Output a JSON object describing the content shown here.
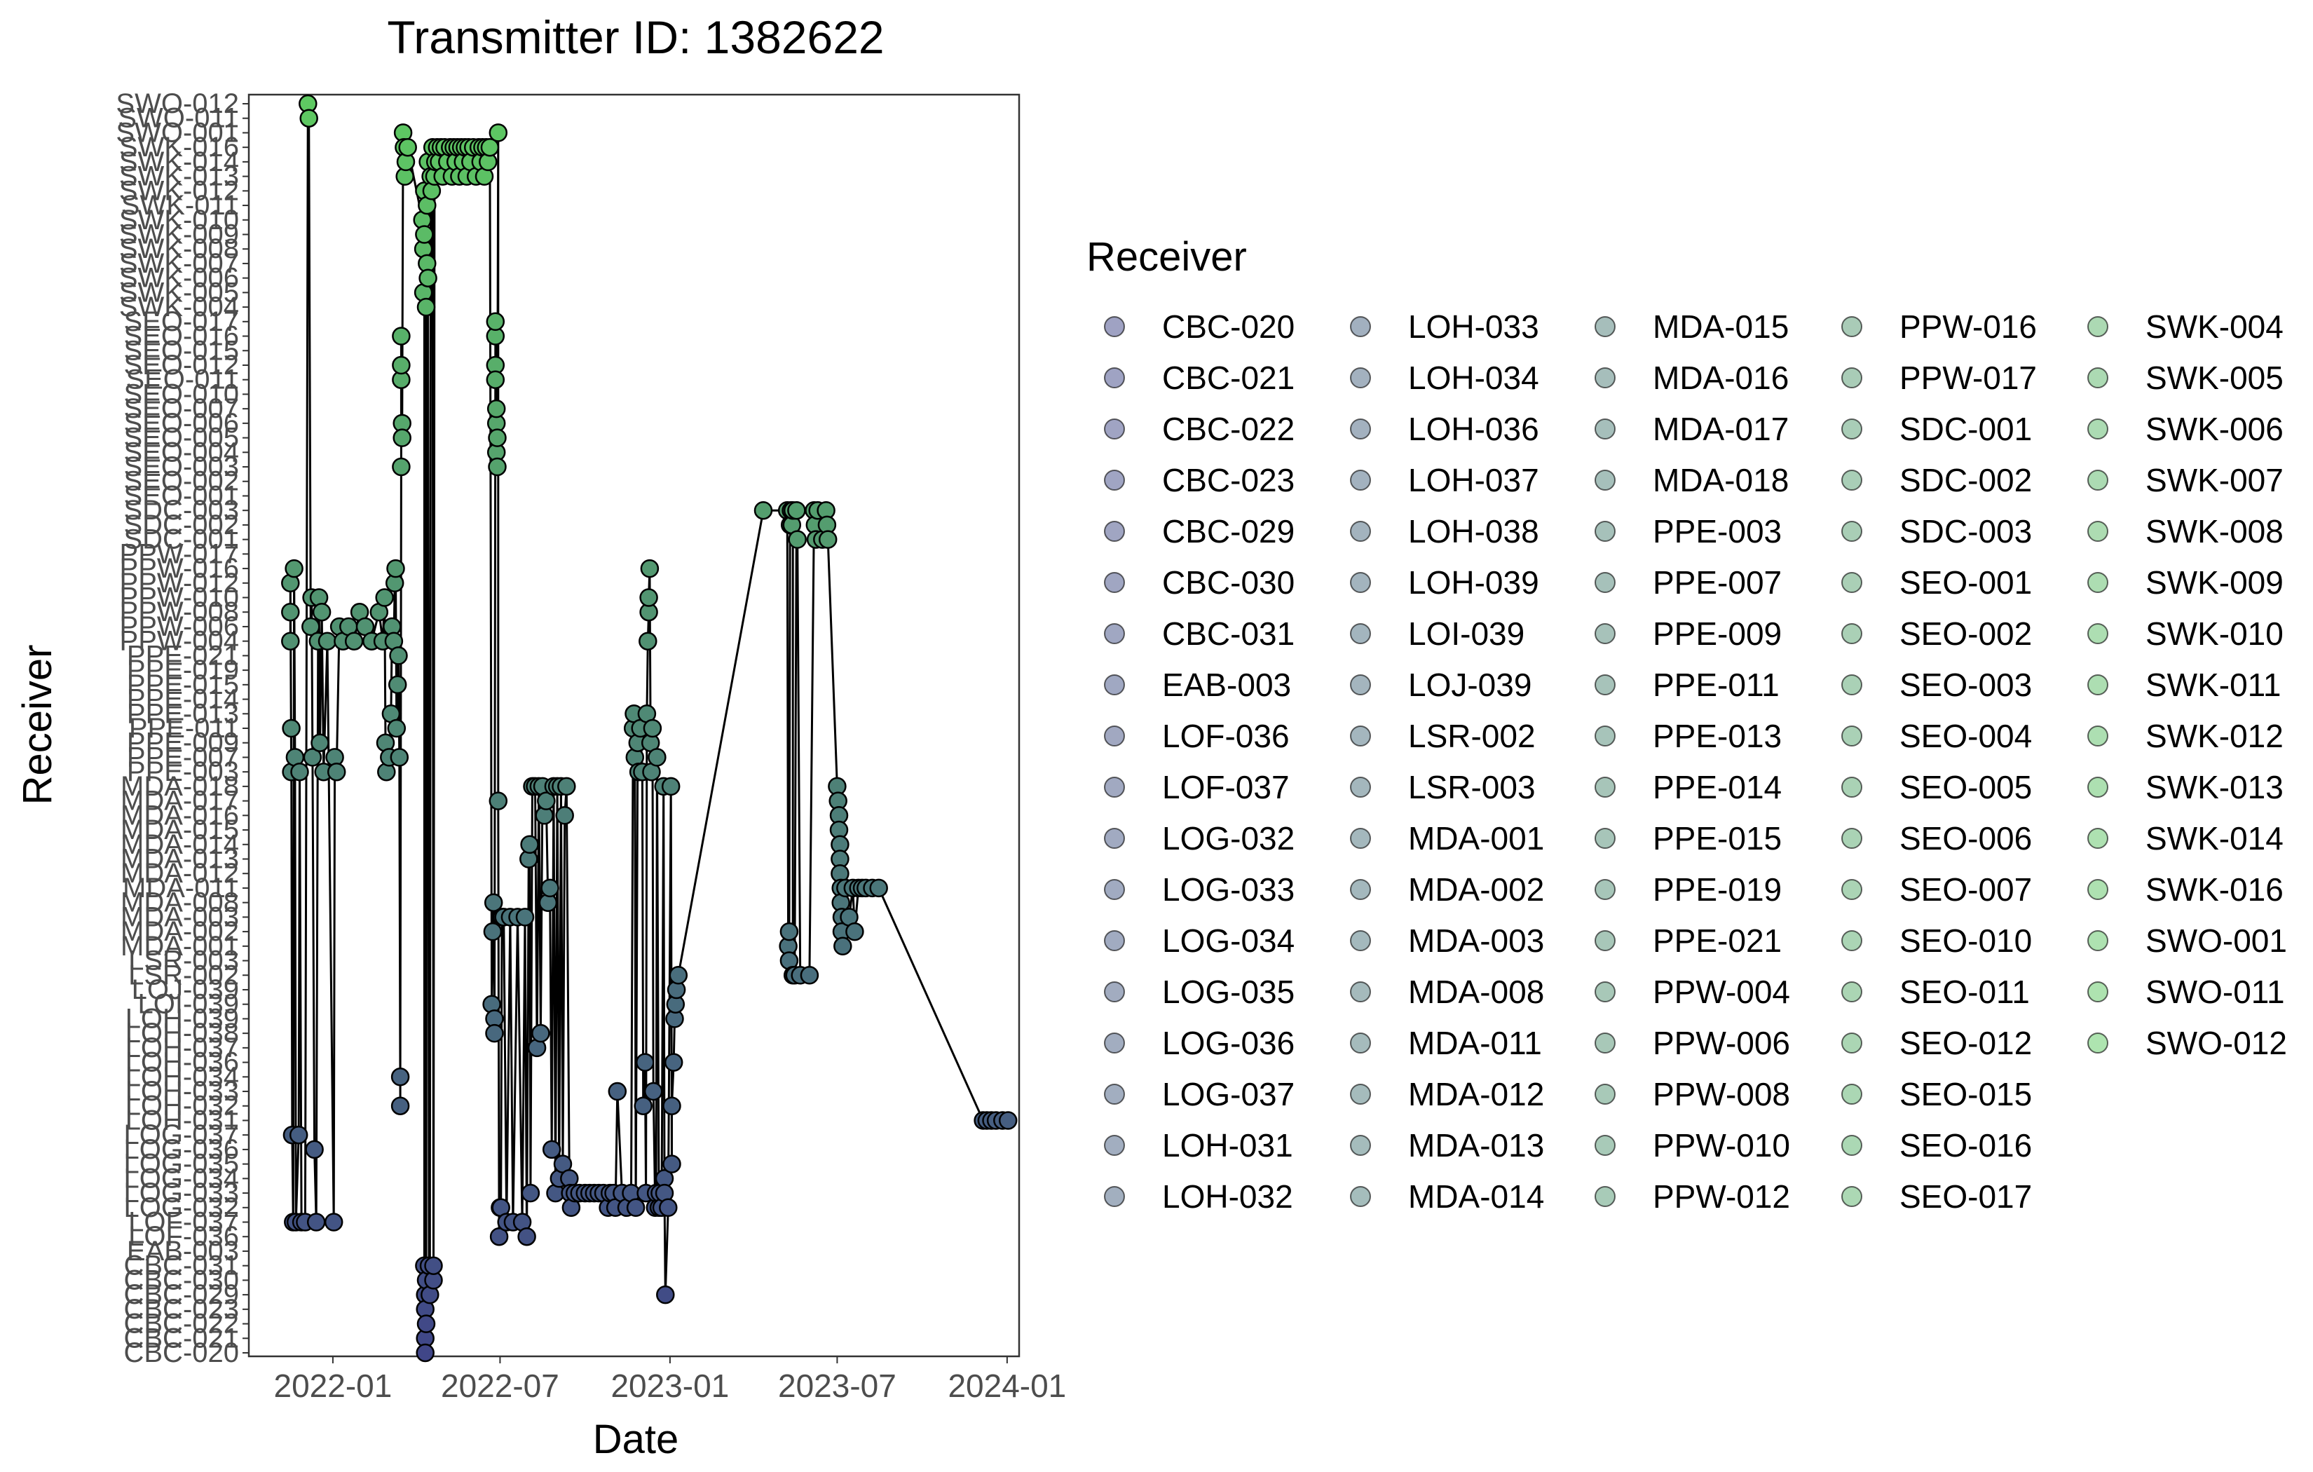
{
  "chart_data": {
    "type": "scatter",
    "title": "Transmitter ID: 1382622",
    "xlabel": "Date",
    "ylabel": "Receiver",
    "legend_title": "Receiver",
    "legend_position": "right",
    "grid": false,
    "xlim": [
      "2021-10-02",
      "2024-01-14"
    ],
    "x_ticks": [
      "2022-01",
      "2022-07",
      "2023-01",
      "2023-07",
      "2024-01"
    ],
    "categories": [
      "CBC-020",
      "CBC-021",
      "CBC-022",
      "CBC-023",
      "CBC-029",
      "CBC-030",
      "CBC-031",
      "EAB-003",
      "LOF-036",
      "LOF-037",
      "LOG-032",
      "LOG-033",
      "LOG-034",
      "LOG-035",
      "LOG-036",
      "LOG-037",
      "LOH-031",
      "LOH-032",
      "LOH-033",
      "LOH-034",
      "LOH-036",
      "LOH-037",
      "LOH-038",
      "LOH-039",
      "LOI-039",
      "LOJ-039",
      "LSR-002",
      "LSR-003",
      "MDA-001",
      "MDA-002",
      "MDA-003",
      "MDA-008",
      "MDA-011",
      "MDA-012",
      "MDA-013",
      "MDA-014",
      "MDA-015",
      "MDA-016",
      "MDA-017",
      "MDA-018",
      "PPE-003",
      "PPE-007",
      "PPE-009",
      "PPE-011",
      "PPE-013",
      "PPE-014",
      "PPE-015",
      "PPE-019",
      "PPE-021",
      "PPW-004",
      "PPW-006",
      "PPW-008",
      "PPW-010",
      "PPW-012",
      "PPW-016",
      "PPW-017",
      "SDC-001",
      "SDC-002",
      "SDC-003",
      "SEO-001",
      "SEO-002",
      "SEO-003",
      "SEO-004",
      "SEO-005",
      "SEO-006",
      "SEO-007",
      "SEO-010",
      "SEO-011",
      "SEO-012",
      "SEO-015",
      "SEO-016",
      "SEO-017",
      "SWK-004",
      "SWK-005",
      "SWK-006",
      "SWK-007",
      "SWK-008",
      "SWK-009",
      "SWK-010",
      "SWK-011",
      "SWK-012",
      "SWK-013",
      "SWK-014",
      "SWK-016",
      "SWO-001",
      "SWO-011",
      "SWO-012"
    ],
    "colors": {
      "start": "#404688",
      "end": "#5ec962",
      "legend_alpha": 0.5
    },
    "points": [
      [
        "2021-11-16",
        "PPW-004"
      ],
      [
        "2021-11-16",
        "PPW-008"
      ],
      [
        "2021-11-16",
        "PPW-012"
      ],
      [
        "2021-11-17",
        "PPE-003"
      ],
      [
        "2021-11-17",
        "PPE-011"
      ],
      [
        "2021-11-18",
        "LOG-037"
      ],
      [
        "2021-11-19",
        "LOF-037"
      ],
      [
        "2021-11-20",
        "PPW-016"
      ],
      [
        "2021-11-21",
        "PPE-007"
      ],
      [
        "2021-11-22",
        "LOF-037"
      ],
      [
        "2021-11-25",
        "LOG-037"
      ],
      [
        "2021-11-26",
        "PPE-003"
      ],
      [
        "2021-11-28",
        "LOF-037"
      ],
      [
        "2021-12-02",
        "LOF-037"
      ],
      [
        "2021-12-05",
        "SWO-012"
      ],
      [
        "2021-12-06",
        "SWO-011"
      ],
      [
        "2021-12-08",
        "PPW-006"
      ],
      [
        "2021-12-09",
        "PPW-010"
      ],
      [
        "2021-12-10",
        "PPE-007"
      ],
      [
        "2021-12-12",
        "LOG-036"
      ],
      [
        "2021-12-14",
        "LOF-037"
      ],
      [
        "2021-12-16",
        "PPW-004"
      ],
      [
        "2021-12-17",
        "PPW-010"
      ],
      [
        "2021-12-18",
        "PPE-009"
      ],
      [
        "2021-12-20",
        "PPW-008"
      ],
      [
        "2021-12-22",
        "PPE-003"
      ],
      [
        "2021-12-26",
        "PPW-004"
      ],
      [
        "2022-01-02",
        "LOF-037"
      ],
      [
        "2022-01-03",
        "PPE-007"
      ],
      [
        "2022-01-05",
        "PPE-003"
      ],
      [
        "2022-01-08",
        "PPW-006"
      ],
      [
        "2022-01-12",
        "PPW-004"
      ],
      [
        "2022-01-18",
        "PPW-006"
      ],
      [
        "2022-01-24",
        "PPW-004"
      ],
      [
        "2022-01-30",
        "PPW-008"
      ],
      [
        "2022-02-05",
        "PPW-006"
      ],
      [
        "2022-02-12",
        "PPW-004"
      ],
      [
        "2022-02-20",
        "PPW-008"
      ],
      [
        "2022-02-24",
        "PPW-004"
      ],
      [
        "2022-02-26",
        "PPW-010"
      ],
      [
        "2022-02-27",
        "PPE-009"
      ],
      [
        "2022-02-28",
        "PPE-003"
      ],
      [
        "2022-03-03",
        "PPE-007"
      ],
      [
        "2022-03-05",
        "PPE-013"
      ],
      [
        "2022-03-06",
        "PPW-006"
      ],
      [
        "2022-03-08",
        "PPW-004"
      ],
      [
        "2022-03-09",
        "PPW-012"
      ],
      [
        "2022-03-10",
        "PPW-016"
      ],
      [
        "2022-03-11",
        "PPE-011"
      ],
      [
        "2022-03-12",
        "PPE-015"
      ],
      [
        "2022-03-13",
        "PPE-021"
      ],
      [
        "2022-03-14",
        "PPE-007"
      ],
      [
        "2022-03-15",
        "LOH-032"
      ],
      [
        "2022-03-15",
        "LOH-034"
      ],
      [
        "2022-03-16",
        "SEO-003"
      ],
      [
        "2022-03-16",
        "SEO-011"
      ],
      [
        "2022-03-16",
        "SEO-016"
      ],
      [
        "2022-03-16",
        "SEO-012"
      ],
      [
        "2022-03-17",
        "SEO-006"
      ],
      [
        "2022-03-17",
        "SEO-005"
      ],
      [
        "2022-03-18",
        "SWO-001"
      ],
      [
        "2022-03-19",
        "SWK-016"
      ],
      [
        "2022-03-20",
        "SWK-013"
      ],
      [
        "2022-03-21",
        "SWK-014"
      ],
      [
        "2022-03-23",
        "SWK-016"
      ],
      [
        "2022-04-08",
        "SWK-010"
      ],
      [
        "2022-04-09",
        "SWK-008"
      ],
      [
        "2022-04-09",
        "SWK-005"
      ],
      [
        "2022-04-10",
        "SWK-012"
      ],
      [
        "2022-04-10",
        "SWK-009"
      ],
      [
        "2022-04-10",
        "CBC-031"
      ],
      [
        "2022-04-11",
        "CBC-029"
      ],
      [
        "2022-04-11",
        "CBC-023"
      ],
      [
        "2022-04-11",
        "CBC-021"
      ],
      [
        "2022-04-11",
        "CBC-020"
      ],
      [
        "2022-04-12",
        "SWK-004"
      ],
      [
        "2022-04-12",
        "CBC-030"
      ],
      [
        "2022-04-12",
        "CBC-022"
      ],
      [
        "2022-04-13",
        "SWK-011"
      ],
      [
        "2022-04-13",
        "SWK-007"
      ],
      [
        "2022-04-14",
        "SWK-014"
      ],
      [
        "2022-04-14",
        "SWK-006"
      ],
      [
        "2022-04-15",
        "CBC-031"
      ],
      [
        "2022-04-16",
        "CBC-029"
      ],
      [
        "2022-04-17",
        "SWK-013"
      ],
      [
        "2022-04-18",
        "SWK-012"
      ],
      [
        "2022-04-19",
        "SWK-016"
      ],
      [
        "2022-04-20",
        "CBC-030"
      ],
      [
        "2022-04-20",
        "CBC-031"
      ],
      [
        "2022-04-21",
        "SWK-013"
      ],
      [
        "2022-04-22",
        "SWK-014"
      ],
      [
        "2022-04-24",
        "SWK-016"
      ],
      [
        "2022-04-26",
        "SWK-014"
      ],
      [
        "2022-04-28",
        "SWK-016"
      ],
      [
        "2022-04-30",
        "SWK-013"
      ],
      [
        "2022-05-02",
        "SWK-016"
      ],
      [
        "2022-05-05",
        "SWK-014"
      ],
      [
        "2022-05-08",
        "SWK-016"
      ],
      [
        "2022-05-10",
        "SWK-013"
      ],
      [
        "2022-05-12",
        "SWK-016"
      ],
      [
        "2022-05-14",
        "SWK-014"
      ],
      [
        "2022-05-16",
        "SWK-016"
      ],
      [
        "2022-05-18",
        "SWK-013"
      ],
      [
        "2022-05-20",
        "SWK-016"
      ],
      [
        "2022-05-22",
        "SWK-014"
      ],
      [
        "2022-05-24",
        "SWK-016"
      ],
      [
        "2022-05-26",
        "SWK-013"
      ],
      [
        "2022-05-28",
        "SWK-016"
      ],
      [
        "2022-05-30",
        "SWK-014"
      ],
      [
        "2022-06-02",
        "SWK-016"
      ],
      [
        "2022-06-05",
        "SWK-013"
      ],
      [
        "2022-06-08",
        "SWK-016"
      ],
      [
        "2022-06-10",
        "SWK-014"
      ],
      [
        "2022-06-12",
        "SWK-016"
      ],
      [
        "2022-06-14",
        "SWK-013"
      ],
      [
        "2022-06-16",
        "SWK-016"
      ],
      [
        "2022-06-18",
        "SWK-014"
      ],
      [
        "2022-06-20",
        "SWK-016"
      ],
      [
        "2022-06-22",
        "LOI-039"
      ],
      [
        "2022-06-23",
        "MDA-002"
      ],
      [
        "2022-06-24",
        "MDA-008"
      ],
      [
        "2022-06-25",
        "LOH-039"
      ],
      [
        "2022-06-25",
        "LOH-038"
      ],
      [
        "2022-06-26",
        "SEO-012"
      ],
      [
        "2022-06-26",
        "SEO-011"
      ],
      [
        "2022-06-26",
        "SEO-016"
      ],
      [
        "2022-06-26",
        "SEO-017"
      ],
      [
        "2022-06-27",
        "SEO-006"
      ],
      [
        "2022-06-27",
        "SEO-007"
      ],
      [
        "2022-06-27",
        "SEO-004"
      ],
      [
        "2022-06-28",
        "SEO-005"
      ],
      [
        "2022-06-28",
        "SEO-003"
      ],
      [
        "2022-06-29",
        "SWO-001"
      ],
      [
        "2022-06-29",
        "MDA-017"
      ],
      [
        "2022-06-30",
        "LOF-036"
      ],
      [
        "2022-07-01",
        "LOG-032"
      ],
      [
        "2022-07-02",
        "LOG-032"
      ],
      [
        "2022-07-03",
        "MDA-003"
      ],
      [
        "2022-07-05",
        "MDA-003"
      ],
      [
        "2022-07-08",
        "LOF-037"
      ],
      [
        "2022-07-12",
        "MDA-003"
      ],
      [
        "2022-07-15",
        "LOF-037"
      ],
      [
        "2022-07-20",
        "MDA-003"
      ],
      [
        "2022-07-25",
        "LOF-037"
      ],
      [
        "2022-07-28",
        "MDA-003"
      ],
      [
        "2022-07-30",
        "LOF-036"
      ],
      [
        "2022-08-01",
        "MDA-013"
      ],
      [
        "2022-08-02",
        "MDA-014"
      ],
      [
        "2022-08-03",
        "LOG-033"
      ],
      [
        "2022-08-05",
        "MDA-018"
      ],
      [
        "2022-08-08",
        "MDA-018"
      ],
      [
        "2022-08-10",
        "LOH-037"
      ],
      [
        "2022-08-12",
        "MDA-018"
      ],
      [
        "2022-08-14",
        "LOH-038"
      ],
      [
        "2022-08-16",
        "MDA-018"
      ],
      [
        "2022-08-18",
        "MDA-016"
      ],
      [
        "2022-08-20",
        "MDA-017"
      ],
      [
        "2022-08-22",
        "MDA-008"
      ],
      [
        "2022-08-24",
        "MDA-011"
      ],
      [
        "2022-08-26",
        "LOG-036"
      ],
      [
        "2022-08-28",
        "MDA-018"
      ],
      [
        "2022-08-30",
        "LOG-033"
      ],
      [
        "2022-09-01",
        "MDA-018"
      ],
      [
        "2022-09-03",
        "LOG-034"
      ],
      [
        "2022-09-05",
        "MDA-018"
      ],
      [
        "2022-09-07",
        "LOG-035"
      ],
      [
        "2022-09-09",
        "MDA-016"
      ],
      [
        "2022-09-11",
        "MDA-018"
      ],
      [
        "2022-09-14",
        "LOG-034"
      ],
      [
        "2022-09-15",
        "LOG-033"
      ],
      [
        "2022-09-16",
        "LOG-032"
      ],
      [
        "2022-09-20",
        "LOG-033"
      ],
      [
        "2022-09-25",
        "LOG-033"
      ],
      [
        "2022-10-01",
        "LOG-033"
      ],
      [
        "2022-10-06",
        "LOG-033"
      ],
      [
        "2022-10-11",
        "LOG-033"
      ],
      [
        "2022-10-16",
        "LOG-033"
      ],
      [
        "2022-10-21",
        "LOG-033"
      ],
      [
        "2022-10-26",
        "LOG-032"
      ],
      [
        "2022-10-28",
        "LOG-033"
      ],
      [
        "2022-11-01",
        "LOG-033"
      ],
      [
        "2022-11-03",
        "LOG-032"
      ],
      [
        "2022-11-05",
        "LOH-033"
      ],
      [
        "2022-11-10",
        "LOG-033"
      ],
      [
        "2022-11-15",
        "LOG-032"
      ],
      [
        "2022-11-20",
        "LOG-033"
      ],
      [
        "2022-11-22",
        "PPE-011"
      ],
      [
        "2022-11-23",
        "PPE-013"
      ],
      [
        "2022-11-24",
        "PPE-007"
      ],
      [
        "2022-11-25",
        "LOG-032"
      ],
      [
        "2022-11-27",
        "PPE-009"
      ],
      [
        "2022-11-28",
        "PPE-003"
      ],
      [
        "2022-11-30",
        "PPE-011"
      ],
      [
        "2022-12-02",
        "PPE-003"
      ],
      [
        "2022-12-03",
        "LOH-032"
      ],
      [
        "2022-12-05",
        "LOH-036"
      ],
      [
        "2022-12-06",
        "LOG-033"
      ],
      [
        "2022-12-07",
        "PPE-013"
      ],
      [
        "2022-12-08",
        "PPW-004"
      ],
      [
        "2022-12-09",
        "PPW-008"
      ],
      [
        "2022-12-09",
        "PPW-010"
      ],
      [
        "2022-12-10",
        "PPW-016"
      ],
      [
        "2022-12-11",
        "PPE-009"
      ],
      [
        "2022-12-12",
        "PPE-003"
      ],
      [
        "2022-12-13",
        "PPE-011"
      ],
      [
        "2022-12-14",
        "LOH-033"
      ],
      [
        "2022-12-16",
        "LOG-032"
      ],
      [
        "2022-12-17",
        "LOG-033"
      ],
      [
        "2022-12-18",
        "PPE-007"
      ],
      [
        "2022-12-20",
        "LOG-032"
      ],
      [
        "2022-12-21",
        "LOG-033"
      ],
      [
        "2022-12-23",
        "LOG-032"
      ],
      [
        "2022-12-25",
        "MDA-018"
      ],
      [
        "2022-12-26",
        "LOG-034"
      ],
      [
        "2022-12-26",
        "LOG-033"
      ],
      [
        "2022-12-27",
        "CBC-029"
      ],
      [
        "2022-12-30",
        "LOG-032"
      ],
      [
        "2023-01-02",
        "MDA-018"
      ],
      [
        "2023-01-03",
        "LOG-035"
      ],
      [
        "2023-01-03",
        "LOH-032"
      ],
      [
        "2023-01-05",
        "LOH-036"
      ],
      [
        "2023-01-06",
        "LOH-039"
      ],
      [
        "2023-01-07",
        "LOI-039"
      ],
      [
        "2023-01-08",
        "LOJ-039"
      ],
      [
        "2023-01-10",
        "LSR-002"
      ],
      [
        "2023-04-12",
        "SDC-003"
      ],
      [
        "2023-05-08",
        "SDC-003"
      ],
      [
        "2023-05-09",
        "MDA-001"
      ],
      [
        "2023-05-10",
        "MDA-002"
      ],
      [
        "2023-05-10",
        "LSR-003"
      ],
      [
        "2023-05-11",
        "SDC-002"
      ],
      [
        "2023-05-12",
        "SDC-003"
      ],
      [
        "2023-05-13",
        "SDC-002"
      ],
      [
        "2023-05-14",
        "SDC-003"
      ],
      [
        "2023-05-14",
        "LSR-002"
      ],
      [
        "2023-05-16",
        "LSR-002"
      ],
      [
        "2023-05-18",
        "SDC-003"
      ],
      [
        "2023-05-19",
        "SDC-001"
      ],
      [
        "2023-05-22",
        "LSR-002"
      ],
      [
        "2023-06-01",
        "LSR-002"
      ],
      [
        "2023-06-06",
        "SDC-003"
      ],
      [
        "2023-06-07",
        "SDC-002"
      ],
      [
        "2023-06-08",
        "SDC-001"
      ],
      [
        "2023-06-10",
        "SDC-003"
      ],
      [
        "2023-06-15",
        "SDC-001"
      ],
      [
        "2023-06-19",
        "SDC-003"
      ],
      [
        "2023-06-20",
        "SDC-002"
      ],
      [
        "2023-06-21",
        "SDC-001"
      ],
      [
        "2023-07-01",
        "MDA-018"
      ],
      [
        "2023-07-02",
        "MDA-017"
      ],
      [
        "2023-07-03",
        "MDA-016"
      ],
      [
        "2023-07-03",
        "MDA-015"
      ],
      [
        "2023-07-04",
        "MDA-014"
      ],
      [
        "2023-07-04",
        "MDA-013"
      ],
      [
        "2023-07-04",
        "MDA-012"
      ],
      [
        "2023-07-05",
        "MDA-011"
      ],
      [
        "2023-07-05",
        "MDA-008"
      ],
      [
        "2023-07-06",
        "MDA-003"
      ],
      [
        "2023-07-06",
        "MDA-002"
      ],
      [
        "2023-07-07",
        "MDA-001"
      ],
      [
        "2023-07-10",
        "MDA-011"
      ],
      [
        "2023-07-14",
        "MDA-003"
      ],
      [
        "2023-07-18",
        "MDA-011"
      ],
      [
        "2023-07-20",
        "MDA-002"
      ],
      [
        "2023-07-24",
        "MDA-011"
      ],
      [
        "2023-07-28",
        "MDA-011"
      ],
      [
        "2023-08-01",
        "MDA-011"
      ],
      [
        "2023-08-08",
        "MDA-011"
      ],
      [
        "2023-08-15",
        "MDA-011"
      ],
      [
        "2023-12-06",
        "LOH-031"
      ],
      [
        "2023-12-10",
        "LOH-031"
      ],
      [
        "2023-12-15",
        "LOH-031"
      ],
      [
        "2023-12-20",
        "LOH-031"
      ],
      [
        "2023-12-27",
        "LOH-031"
      ],
      [
        "2024-01-02",
        "LOH-031"
      ]
    ]
  }
}
